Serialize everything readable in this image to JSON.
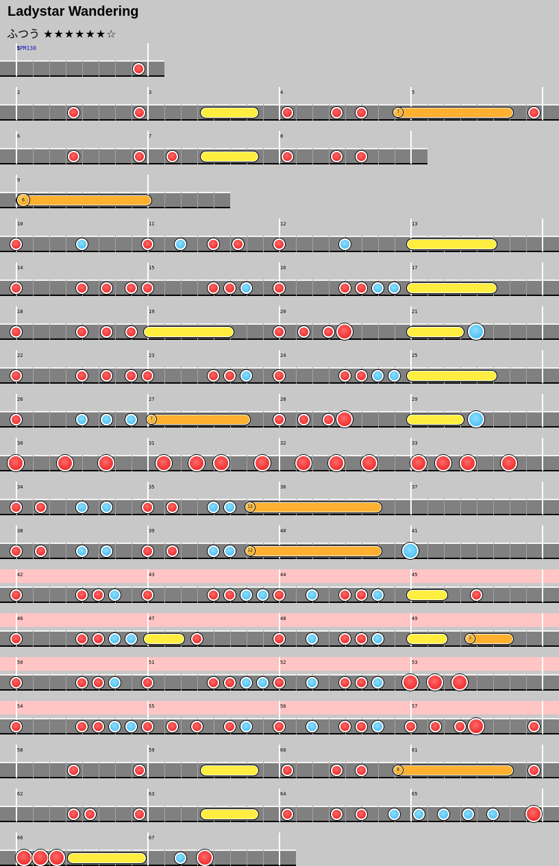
{
  "song": {
    "title": "Ladystar Wandering",
    "difficulty": "ふつう",
    "stars": "★★★★★★☆",
    "bpm_label": "BPM130"
  },
  "colors": {
    "background": "#c8c8c8",
    "lane": "#808080",
    "don": "#e81818",
    "ka": "#38b4f0",
    "roll": "#ffee40",
    "balloon_roll": "#ffb030",
    "gogo": "#ffc4c4"
  },
  "rows": [
    {
      "width": 240,
      "gogo": false,
      "measures": [
        "1"
      ],
      "notes": "d:202s"
    },
    {
      "width": 816,
      "gogo": false,
      "measures": [
        "2",
        "3",
        "4",
        "5"
      ],
      "notes": "d:107s d:203s y:292-378 d:419s d:491s d:527s b:575-750:7 d:779s"
    },
    {
      "width": 624,
      "gogo": false,
      "measures": [
        "6",
        "7",
        "8"
      ],
      "notes": "d:107s d:203s d:251s y:292-378 d:419s d:491s d:527s"
    },
    {
      "width": 336,
      "gogo": false,
      "measures": [
        "9"
      ],
      "notes": "b:23-222:6"
    },
    {
      "width": 816,
      "gogo": false,
      "measures": [
        "10",
        "11",
        "12",
        "13"
      ],
      "notes": "d:23s k:119s d:215s k:263s d:311s d:347s d:407s k:503s y:593-726"
    },
    {
      "width": 816,
      "gogo": false,
      "measures": [
        "14",
        "15",
        "16",
        "17"
      ],
      "notes": "d:23s d:119s d:155s d:191s d:215s d:311s d:335s k:359s d:407s d:503s d:527s k:551s k:575s y:593-726"
    },
    {
      "width": 816,
      "gogo": false,
      "measures": [
        "18",
        "19",
        "20",
        "21"
      ],
      "notes": "d:23s d:119s d:155s d:191s y:209-342 d:407s d:443s d:479s d:503l y:593-678 k:695l"
    },
    {
      "width": 816,
      "gogo": false,
      "measures": [
        "22",
        "23",
        "24",
        "25"
      ],
      "notes": "d:23s d:119s d:155s d:191s d:215s d:311s d:335s k:359s d:407s d:503s d:527s k:551s k:575s y:593-726"
    },
    {
      "width": 816,
      "gogo": false,
      "measures": [
        "26",
        "27",
        "28",
        "29"
      ],
      "notes": "d:23s k:119s k:155s k:191s b:215-366:7 d:407s d:443s d:479s d:503l y:593-678 k:695l"
    },
    {
      "width": 816,
      "gogo": false,
      "measures": [
        "30",
        "31",
        "32",
        "33"
      ],
      "notes": "d:23l d:95l d:155l d:239l d:287l d:323l d:383l d:443l d:491l d:539l d:611l d:647l d:683l d:743l"
    },
    {
      "width": 816,
      "gogo": false,
      "measures": [
        "34",
        "35",
        "36",
        "37"
      ],
      "notes": "d:23s d:59s k:119s k:155s d:215s d:251s k:311s k:335s b:359-558:12"
    },
    {
      "width": 816,
      "gogo": false,
      "measures": [
        "38",
        "39",
        "40",
        "41"
      ],
      "notes": "d:23s d:59s k:119s k:155s d:215s d:251s k:311s k:335s b:359-558:12 k:599l"
    },
    {
      "width": 816,
      "gogo": true,
      "measures": [
        "42",
        "43",
        "44",
        "45"
      ],
      "notes": "d:23s d:119s d:143s k:167s d:215s d:311s d:335s k:359s k:383s d:407s k:455s d:503s d:527s k:551s y:593-654 d:695s"
    },
    {
      "width": 816,
      "gogo": true,
      "measures": [
        "46",
        "47",
        "48",
        "49"
      ],
      "notes": "d:23s d:119s d:143s k:167s k:191s y:209-270 d:287s d:407s k:455s d:503s d:527s k:551s y:593-654 b:680-750:3"
    },
    {
      "width": 816,
      "gogo": true,
      "measures": [
        "50",
        "51",
        "52",
        "53"
      ],
      "notes": "d:23s d:119s d:143s k:167s d:215s d:311s d:335s k:359s k:383s d:407s k:455s d:503s d:527s k:551s d:599l d:635l d:671l"
    },
    {
      "width": 816,
      "gogo": true,
      "measures": [
        "54",
        "55",
        "56",
        "57"
      ],
      "notes": "d:23s d:119s d:143s k:167s k:191s d:215s d:251s d:287s d:335s k:359s d:407s k:455s d:503s d:527s k:551s d:599s d:635s d:671s d:695l d:779s"
    },
    {
      "width": 816,
      "gogo": false,
      "measures": [
        "58",
        "59",
        "60",
        "61"
      ],
      "notes": "d:107s d:203s y:292-378 d:419s d:491s d:527s b:575-750:8 d:779s"
    },
    {
      "width": 816,
      "gogo": false,
      "measures": [
        "62",
        "63",
        "64",
        "65"
      ],
      "notes": "d:107s d:131s d:203s y:292-378 d:419s d:491s d:527s k:575s k:611s k:647s k:683s k:719s d:779l"
    },
    {
      "width": 432,
      "gogo": false,
      "measures": [
        "66",
        "67"
      ],
      "notes": "d:35l d:59l d:83l y:98-214 k:263s d:299l"
    }
  ]
}
